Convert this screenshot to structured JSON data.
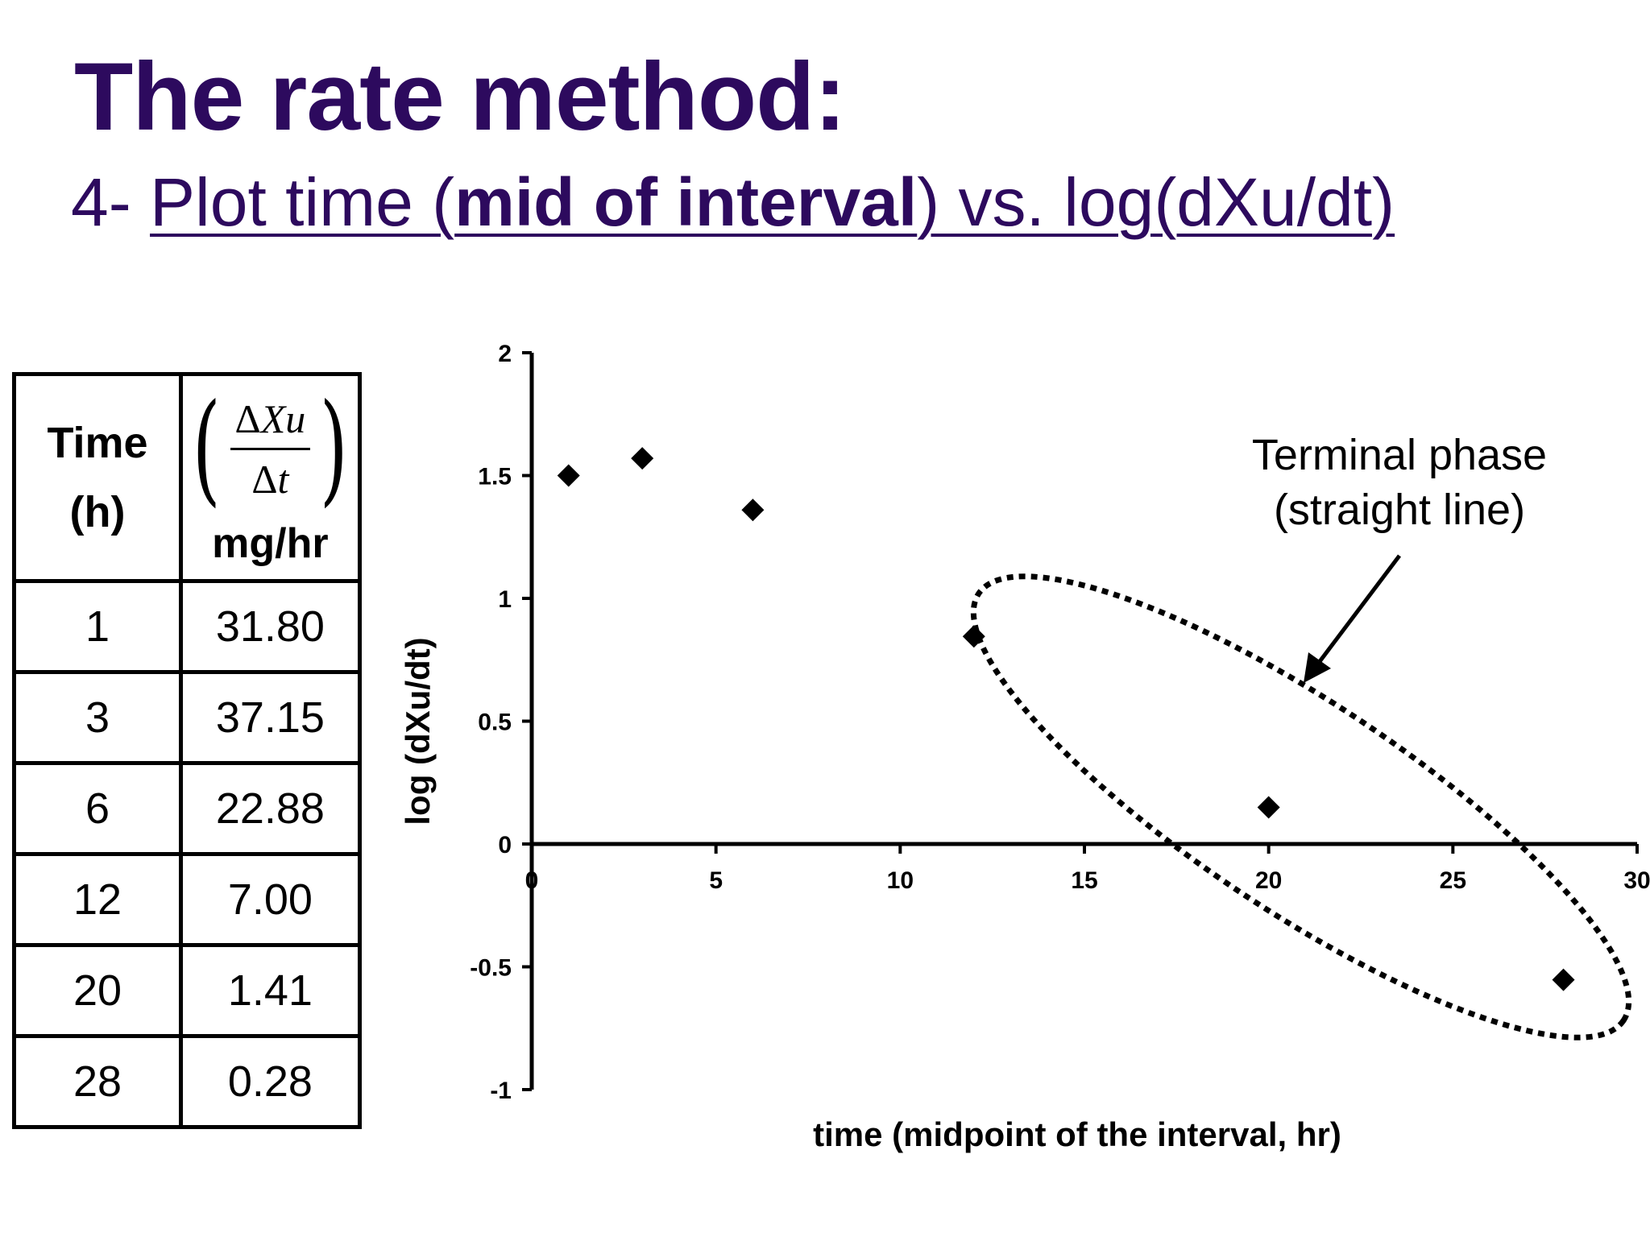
{
  "slide": {
    "title": "The rate method:",
    "subtitle_prefix": "4- ",
    "subtitle_u1": "Plot time (",
    "subtitle_bold": "mid of interval",
    "subtitle_u2": ") vs. log(dXu/dt)"
  },
  "table": {
    "header_time_line1": "Time",
    "header_time_line2": "(h)",
    "header_rate_num_delta": "Δ",
    "header_rate_num_var": "Xu",
    "header_rate_den_delta": "Δ",
    "header_rate_den_var": "t",
    "header_rate_unit": "mg/hr",
    "rows": [
      {
        "time": "1",
        "rate": "31.80"
      },
      {
        "time": "3",
        "rate": "37.15"
      },
      {
        "time": "6",
        "rate": "22.88"
      },
      {
        "time": "12",
        "rate": "7.00"
      },
      {
        "time": "20",
        "rate": "1.41"
      },
      {
        "time": "28",
        "rate": "0.28"
      }
    ]
  },
  "chart_data": {
    "type": "scatter",
    "title": "",
    "xlabel": "time (midpoint of the interval, hr)",
    "ylabel": "log (dXu/dt)",
    "xlim": [
      0,
      30
    ],
    "ylim": [
      -1,
      2
    ],
    "x_ticks": [
      0,
      5,
      10,
      15,
      20,
      25,
      30
    ],
    "x_tick_labels": [
      "0",
      "5",
      "10",
      "15",
      "20",
      "25",
      "30"
    ],
    "y_ticks": [
      -1,
      -0.5,
      0,
      0.5,
      1,
      1.5,
      2
    ],
    "y_tick_labels": [
      "-1",
      "-0.5",
      "0",
      "0.5",
      "1",
      "1.5",
      "2"
    ],
    "marker": "diamond",
    "series": [
      {
        "name": "log(dXu/dt)",
        "x": [
          1,
          3,
          6,
          12,
          20,
          28
        ],
        "y": [
          1.5,
          1.57,
          1.36,
          0.845,
          0.149,
          -0.553
        ]
      }
    ],
    "annotation": {
      "line1": "Terminal phase",
      "line2": "(straight line)",
      "encloses_points_x": [
        12,
        20,
        28
      ]
    }
  }
}
